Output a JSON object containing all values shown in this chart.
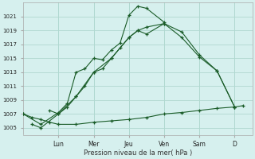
{
  "background_color": "#d6f0ee",
  "grid_color": "#b0d8d0",
  "line_color": "#1a5c28",
  "xlabel": "Pression niveau de la mer( hPa )",
  "ylim": [
    1004.0,
    1023.0
  ],
  "xlim": [
    0,
    13.0
  ],
  "yticks": [
    1005,
    1007,
    1009,
    1011,
    1013,
    1015,
    1017,
    1019,
    1021
  ],
  "x_day_labels": [
    "Lun",
    "Mer",
    "Jeu",
    "Ven",
    "Sam",
    "D"
  ],
  "x_day_positions": [
    2.0,
    4.0,
    6.0,
    8.0,
    10.0,
    12.0
  ],
  "series1_x": [
    0.0,
    1.0,
    2.0,
    2.5,
    3.0,
    3.5,
    4.0,
    4.5,
    5.0,
    5.5,
    6.0,
    6.5,
    7.0,
    8.0
  ],
  "series1_y": [
    1007.0,
    1005.5,
    1007.2,
    1008.5,
    1013.0,
    1013.5,
    1015.0,
    1014.8,
    1016.2,
    1017.2,
    1021.2,
    1022.5,
    1022.2,
    1020.2
  ],
  "series2_x": [
    0.5,
    1.0,
    2.0,
    3.0,
    4.0,
    5.0,
    6.0,
    6.5,
    7.0,
    8.0,
    9.0,
    10.0,
    11.0,
    12.0
  ],
  "series2_y": [
    1005.5,
    1005.0,
    1007.0,
    1009.5,
    1013.0,
    1015.0,
    1018.0,
    1019.0,
    1019.5,
    1020.0,
    1018.0,
    1015.2,
    1013.2,
    1008.0
  ],
  "series3_x": [
    0.0,
    0.5,
    1.0,
    1.5,
    2.0,
    3.0,
    4.0,
    5.0,
    6.0,
    7.0,
    8.0,
    9.0,
    10.0,
    11.0,
    12.0,
    12.5
  ],
  "series3_y": [
    1007.0,
    1006.5,
    1006.2,
    1005.8,
    1005.5,
    1005.5,
    1005.8,
    1006.0,
    1006.2,
    1006.5,
    1007.0,
    1007.2,
    1007.5,
    1007.8,
    1008.0,
    1008.2
  ],
  "series4_x": [
    1.5,
    2.0,
    2.5,
    3.0,
    3.5,
    4.0,
    4.5,
    5.0,
    5.5,
    6.0,
    6.5,
    7.0,
    8.0,
    9.0,
    10.0,
    11.0,
    12.0
  ],
  "series4_y": [
    1007.5,
    1007.0,
    1008.0,
    1009.5,
    1011.0,
    1013.0,
    1013.5,
    1015.0,
    1016.5,
    1018.0,
    1019.0,
    1018.5,
    1020.0,
    1018.8,
    1015.5,
    1013.2,
    1008.0
  ]
}
